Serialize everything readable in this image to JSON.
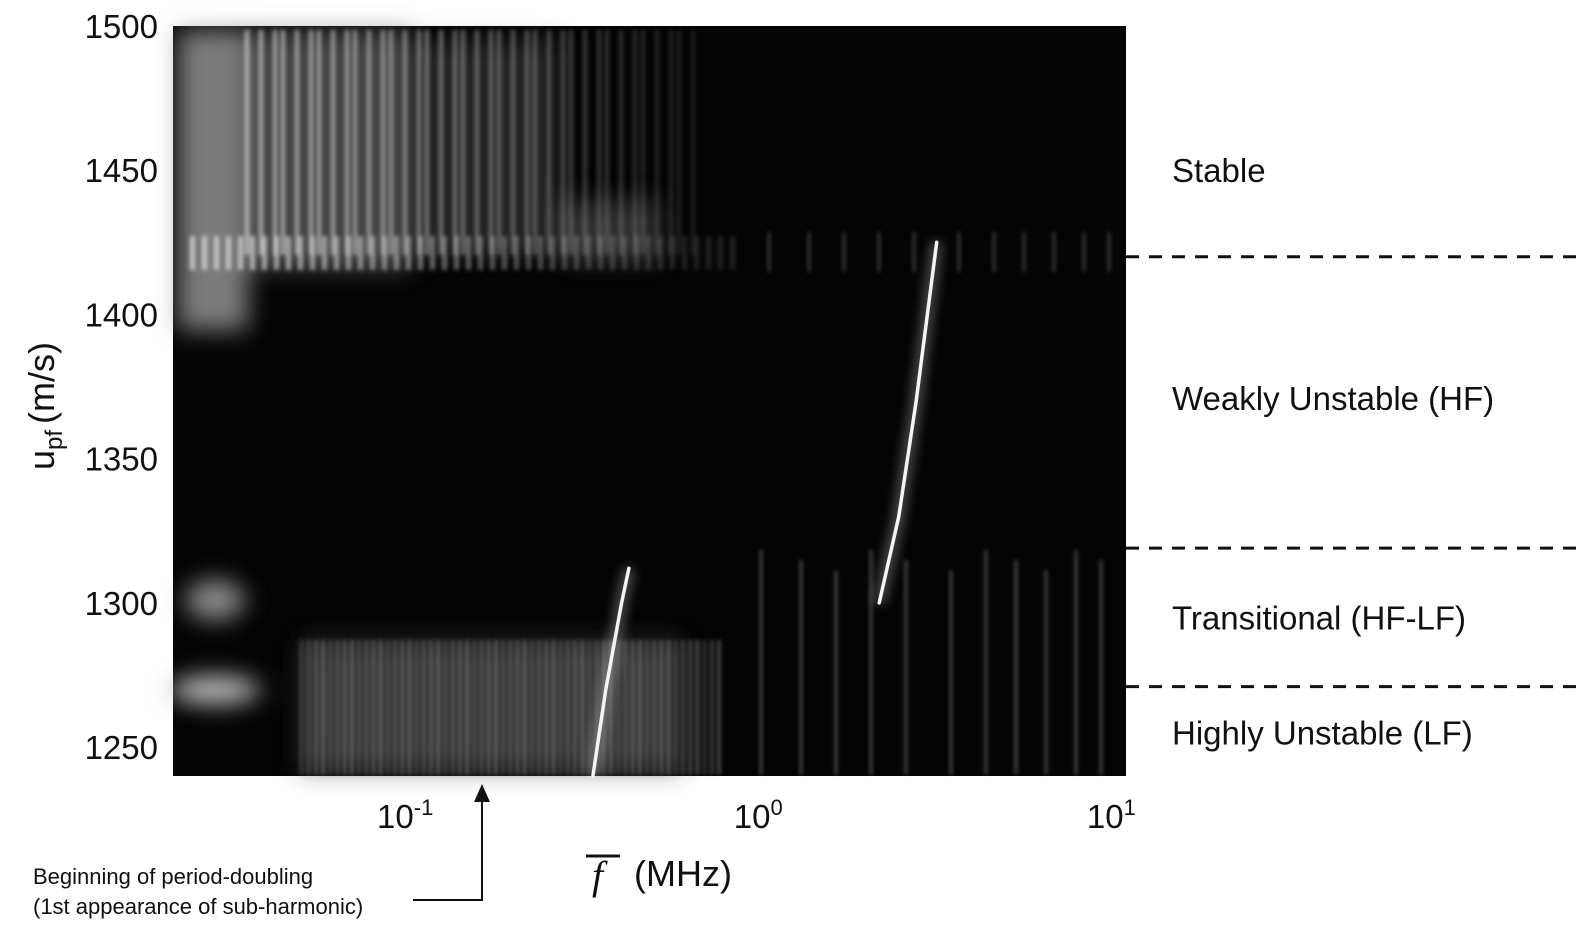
{
  "chart_data": {
    "type": "heatmap",
    "title": "",
    "xlabel": {
      "symbol": "f",
      "unit": "(MHz)"
    },
    "ylabel": {
      "base": "u",
      "subscript": "pf",
      "unit": "(m/s)"
    },
    "x_scale": "log",
    "xlim": [
      0.022,
      11
    ],
    "ylim": [
      1240,
      1500
    ],
    "x_ticks": [
      {
        "value": 0.1,
        "base": "10",
        "exp": "-1"
      },
      {
        "value": 1,
        "base": "10",
        "exp": "0"
      },
      {
        "value": 10,
        "base": "10",
        "exp": "1"
      }
    ],
    "y_ticks": [
      {
        "value": 1250,
        "label": "1250"
      },
      {
        "value": 1300,
        "label": "1300"
      },
      {
        "value": 1350,
        "label": "1350"
      },
      {
        "value": 1400,
        "label": "1400"
      },
      {
        "value": 1450,
        "label": "1450"
      },
      {
        "value": 1500,
        "label": "1500"
      }
    ],
    "colormap": "grayscale (black = low amplitude, white = high amplitude)",
    "grid": false,
    "regime_boundaries": [
      1420,
      1319,
      1271
    ],
    "regimes": [
      {
        "label": "Stable",
        "y": 1450
      },
      {
        "label": "Weakly Unstable (HF)",
        "y": 1371
      },
      {
        "label": "Transitional (HF-LF)",
        "y": 1295
      },
      {
        "label": "Highly Unstable (LF)",
        "y": 1255
      }
    ],
    "annotation": {
      "lines": [
        "Beginning of period-doubling",
        "(1st appearance of sub-harmonic)"
      ],
      "arrow_x": 0.165,
      "arrow_y": 1240
    },
    "bright_ridges": [
      {
        "name": "",
        "points": [
          [
            0.34,
            1240
          ],
          [
            0.37,
            1270
          ],
          [
            0.41,
            1300
          ],
          [
            0.43,
            1312
          ]
        ]
      },
      {
        "name": "",
        "points": [
          [
            2.2,
            1300
          ],
          [
            2.5,
            1330
          ],
          [
            2.8,
            1370
          ],
          [
            3.2,
            1425
          ]
        ]
      }
    ]
  }
}
